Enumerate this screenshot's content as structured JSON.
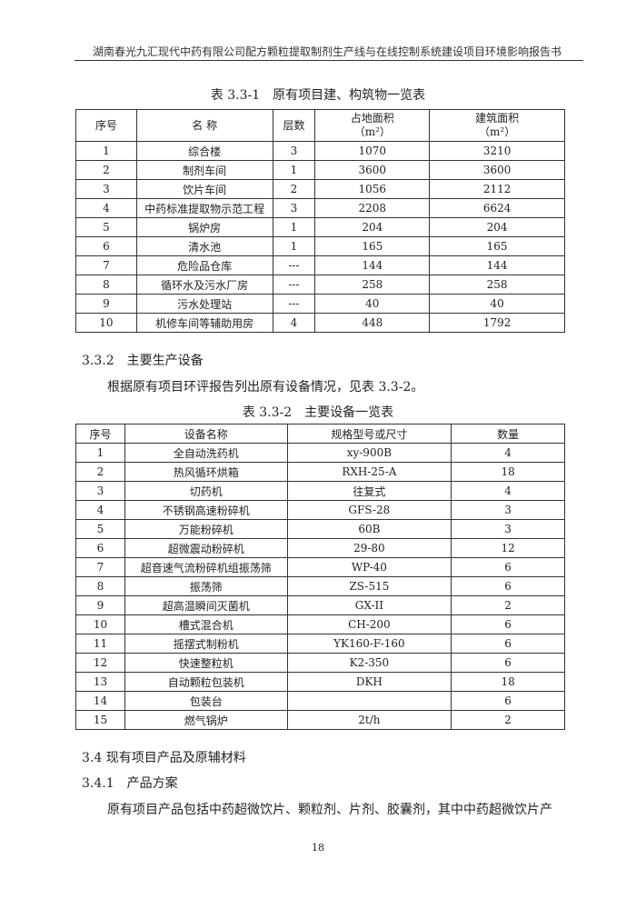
{
  "header": "湖南春光九汇现代中药有限公司配方颗粒提取制剂生产线与在线控制系统建设项目环境影响报告书",
  "table1": {
    "caption": "表 3.3-1　原有项目建、构筑物一览表",
    "headers": [
      "序号",
      "名 称",
      "层数",
      "占地面积（m²）",
      "建筑面积（m²）"
    ],
    "rows": [
      [
        "1",
        "综合楼",
        "3",
        "1070",
        "3210"
      ],
      [
        "2",
        "制剂车间",
        "1",
        "3600",
        "3600"
      ],
      [
        "3",
        "饮片车间",
        "2",
        "1056",
        "2112"
      ],
      [
        "4",
        "中药标准提取物示范工程",
        "3",
        "2208",
        "6624"
      ],
      [
        "5",
        "锅炉房",
        "1",
        "204",
        "204"
      ],
      [
        "6",
        "清水池",
        "1",
        "165",
        "165"
      ],
      [
        "7",
        "危险品仓库",
        "---",
        "144",
        "144"
      ],
      [
        "8",
        "循环水及污水厂房",
        "---",
        "258",
        "258"
      ],
      [
        "9",
        "污水处理站",
        "---",
        "40",
        "40"
      ],
      [
        "10",
        "机修车间等辅助用房",
        "4",
        "448",
        "1792"
      ]
    ]
  },
  "section_332": "3.3.2　主要生产设备",
  "para1": "根据原有项目环评报告列出原有设备情况，见表 3.3-2。",
  "table2": {
    "caption": "表 3.3-2　主要设备一览表",
    "headers": [
      "序号",
      "设备名称",
      "规格型号或尺寸",
      "数量"
    ],
    "rows": [
      [
        "1",
        "全自动洗药机",
        "xy-900B",
        "4"
      ],
      [
        "2",
        "热风循环烘箱",
        "RXH-25-A",
        "18"
      ],
      [
        "3",
        "切药机",
        "往复式",
        "4"
      ],
      [
        "4",
        "不锈钢高速粉碎机",
        "GFS-28",
        "3"
      ],
      [
        "5",
        "万能粉碎机",
        "60B",
        "3"
      ],
      [
        "6",
        "超微震动粉碎机",
        "29-80",
        "12"
      ],
      [
        "7",
        "超音速气流粉碎机组振荡筛",
        "WP-40",
        "6"
      ],
      [
        "8",
        "振荡筛",
        "ZS-515",
        "6"
      ],
      [
        "9",
        "超高温瞬间灭菌机",
        "GX-II",
        "2"
      ],
      [
        "10",
        "槽式混合机",
        "CH-200",
        "6"
      ],
      [
        "11",
        "摇摆式制粉机",
        "YK160-F-160",
        "6"
      ],
      [
        "12",
        "快速整粒机",
        "K2-350",
        "6"
      ],
      [
        "13",
        "自动颗粒包装机",
        "DKH",
        "18"
      ],
      [
        "14",
        "包装台",
        "",
        "6"
      ],
      [
        "15",
        "燃气锅炉",
        "2t/h",
        "2"
      ]
    ]
  },
  "section_34": "3.4 现有项目产品及原辅材料",
  "section_341": "3.4.1　产品方案",
  "para2": "原有项目产品包括中药超微饮片、颗粒剂、片剂、胶囊剂，其中中药超微饮片产",
  "page_number": "18"
}
